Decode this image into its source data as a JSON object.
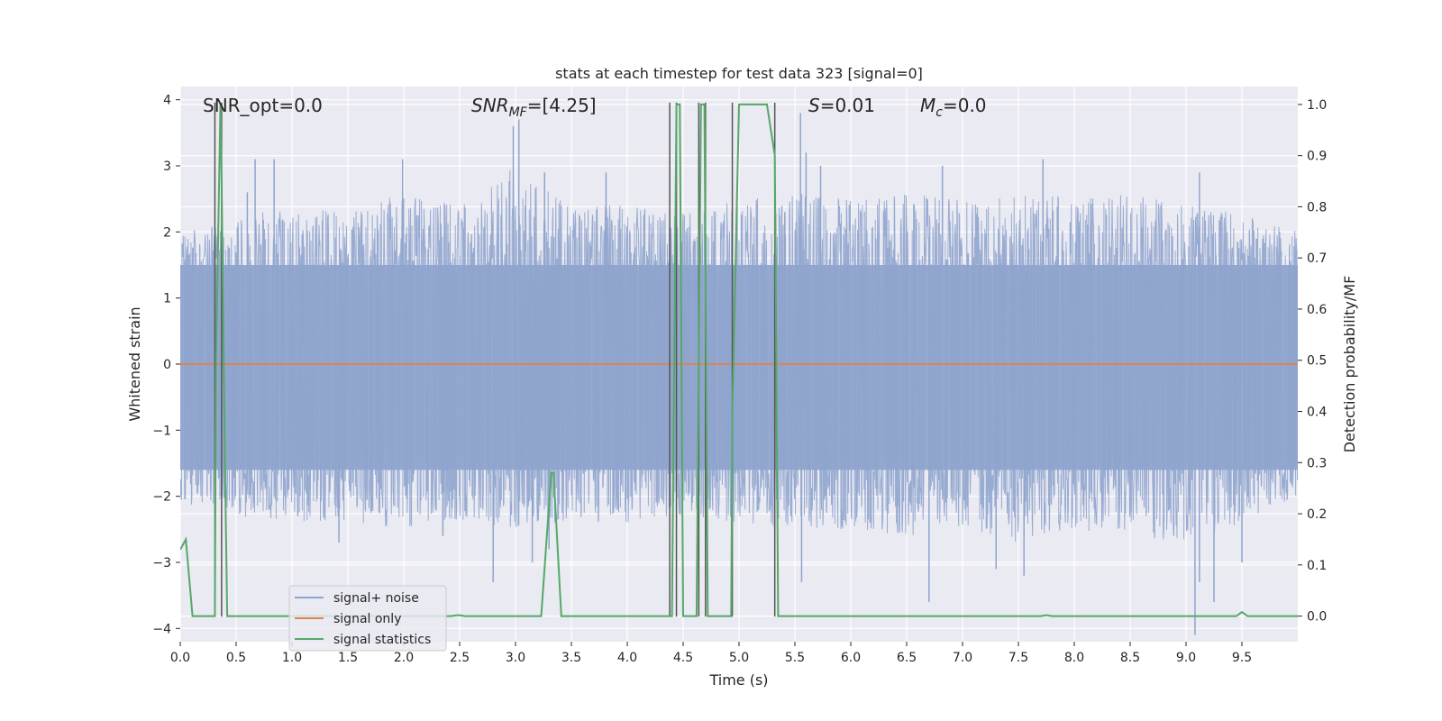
{
  "chart_data": {
    "type": "line",
    "title": "stats at each timestep for test data 323 [signal=0]",
    "xlabel": "Time (s)",
    "ylabel": "Whitened strain",
    "y2label": "Detection probability/MF",
    "xlim": [
      0.0,
      10.0
    ],
    "ylim": [
      -4.2,
      4.2
    ],
    "y2lim": [
      -0.05,
      1.035
    ],
    "xticks": [
      0.0,
      0.5,
      1.0,
      1.5,
      2.0,
      2.5,
      3.0,
      3.5,
      4.0,
      4.5,
      5.0,
      5.5,
      6.0,
      6.5,
      7.0,
      7.5,
      8.0,
      8.5,
      9.0,
      9.5
    ],
    "xtick_labels": [
      "0.0",
      "0.5",
      "1.0",
      "1.5",
      "2.0",
      "2.5",
      "3.0",
      "3.5",
      "4.0",
      "4.5",
      "5.0",
      "5.5",
      "6.0",
      "6.5",
      "7.0",
      "7.5",
      "8.0",
      "8.5",
      "9.0",
      "9.5"
    ],
    "yticks": [
      -4,
      -3,
      -2,
      -1,
      0,
      1,
      2,
      3,
      4
    ],
    "ytick_labels": [
      "−4",
      "−3",
      "−2",
      "−1",
      "0",
      "1",
      "2",
      "3",
      "4"
    ],
    "y2ticks": [
      0.0,
      0.1,
      0.2,
      0.3,
      0.4,
      0.5,
      0.6,
      0.7,
      0.8,
      0.9,
      1.0
    ],
    "y2tick_labels": [
      "0.0",
      "0.1",
      "0.2",
      "0.3",
      "0.4",
      "0.5",
      "0.6",
      "0.7",
      "0.8",
      "0.9",
      "1.0"
    ],
    "grid": true,
    "legend_position": "lower-left",
    "annotations": {
      "snr_opt": "SNR_opt=0.0",
      "snr_mf_symbol": "SNR",
      "snr_mf_sub": "MF",
      "snr_mf_value": "=[4.25]",
      "s_symbol": "S",
      "s_value": "=0.01",
      "mc_symbol": "M",
      "mc_sub": "c",
      "mc_value": "=0.0"
    },
    "series": [
      {
        "name": "signal+ noise",
        "color": "#8fa4cd",
        "axis": "left",
        "envelope_upper": [
          [
            0.0,
            2.0
          ],
          [
            0.5,
            2.2
          ],
          [
            1.0,
            2.4
          ],
          [
            1.5,
            2.3
          ],
          [
            2.0,
            2.6
          ],
          [
            2.5,
            2.4
          ],
          [
            3.0,
            3.0
          ],
          [
            3.5,
            2.4
          ],
          [
            4.0,
            2.4
          ],
          [
            4.5,
            2.3
          ],
          [
            5.0,
            2.5
          ],
          [
            5.5,
            2.6
          ],
          [
            6.0,
            2.5
          ],
          [
            6.5,
            2.6
          ],
          [
            7.0,
            2.5
          ],
          [
            7.5,
            2.6
          ],
          [
            8.0,
            2.5
          ],
          [
            8.5,
            2.6
          ],
          [
            9.0,
            2.4
          ],
          [
            9.5,
            2.3
          ],
          [
            10.0,
            2.0
          ]
        ],
        "envelope_lower": [
          [
            0.0,
            -2.1
          ],
          [
            0.5,
            -2.3
          ],
          [
            1.0,
            -2.4
          ],
          [
            1.5,
            -2.4
          ],
          [
            2.0,
            -2.5
          ],
          [
            2.5,
            -2.4
          ],
          [
            3.0,
            -2.5
          ],
          [
            3.5,
            -2.4
          ],
          [
            4.0,
            -2.4
          ],
          [
            4.5,
            -2.3
          ],
          [
            5.0,
            -2.4
          ],
          [
            5.5,
            -2.5
          ],
          [
            6.0,
            -2.5
          ],
          [
            6.5,
            -2.6
          ],
          [
            7.0,
            -2.5
          ],
          [
            7.5,
            -2.7
          ],
          [
            8.0,
            -2.5
          ],
          [
            8.5,
            -2.6
          ],
          [
            9.0,
            -2.7
          ],
          [
            9.5,
            -2.4
          ],
          [
            10.0,
            -2.0
          ]
        ],
        "peaks": [
          [
            0.6,
            2.6
          ],
          [
            0.67,
            3.1
          ],
          [
            0.84,
            3.1
          ],
          [
            1.99,
            3.1
          ],
          [
            2.98,
            3.6
          ],
          [
            3.03,
            3.7
          ],
          [
            3.26,
            2.9
          ],
          [
            3.81,
            2.9
          ],
          [
            5.41,
            2.3
          ],
          [
            5.55,
            3.8
          ],
          [
            5.6,
            3.2
          ],
          [
            5.73,
            3.0
          ],
          [
            6.82,
            3.0
          ],
          [
            7.72,
            3.1
          ],
          [
            9.12,
            2.9
          ],
          [
            1.42,
            -2.7
          ],
          [
            2.35,
            -2.6
          ],
          [
            2.8,
            -3.3
          ],
          [
            3.15,
            -3.0
          ],
          [
            3.3,
            -2.8
          ],
          [
            5.56,
            -3.3
          ],
          [
            6.7,
            -3.6
          ],
          [
            7.3,
            -3.1
          ],
          [
            7.55,
            -3.2
          ],
          [
            9.12,
            -3.3
          ],
          [
            9.08,
            -4.1
          ],
          [
            9.25,
            -3.6
          ],
          [
            9.5,
            -3.0
          ]
        ]
      },
      {
        "name": "signal only",
        "color": "#dd8452",
        "axis": "left",
        "x": [
          0.0,
          10.0
        ],
        "values": [
          0.0,
          0.0
        ]
      },
      {
        "name": "signal statistics",
        "color": "#55a868",
        "axis": "right",
        "x": [
          0.0,
          0.05,
          0.11,
          0.31,
          0.32,
          0.36,
          0.37,
          0.4,
          0.42,
          0.44,
          0.5,
          0.8,
          2.42,
          2.49,
          2.55,
          3.23,
          3.32,
          3.34,
          3.41,
          4.4,
          4.44,
          4.47,
          4.5,
          4.62,
          4.66,
          4.69,
          4.72,
          4.93,
          4.94,
          5.0,
          5.25,
          5.32,
          5.35,
          5.4,
          7.7,
          7.75,
          7.8,
          9.45,
          9.5,
          9.55,
          10.0
        ],
        "values": [
          0.13,
          0.15,
          0.0,
          0.0,
          0.5,
          1.0,
          0.85,
          0.3,
          0.0,
          0.0,
          0.0,
          0.0,
          0.0,
          0.002,
          0.0,
          0.0,
          0.28,
          0.28,
          0.0,
          0.0,
          1.0,
          1.0,
          0.0,
          0.0,
          1.0,
          1.0,
          0.0,
          0.0,
          0.4,
          1.0,
          1.0,
          0.9,
          0.0,
          0.0,
          0.0,
          0.002,
          0.0,
          0.0,
          0.008,
          0.0,
          0.0
        ]
      }
    ],
    "vertical_lines": {
      "color": "#555555",
      "x": [
        0.31,
        0.37,
        4.38,
        4.44,
        4.64,
        4.7,
        4.94,
        5.32
      ]
    }
  }
}
